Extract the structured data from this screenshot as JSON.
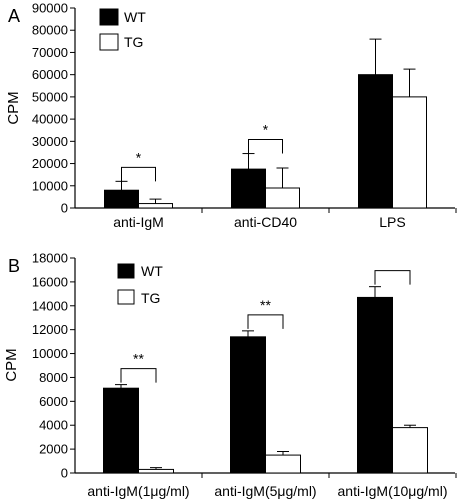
{
  "chart_data": [
    {
      "type": "bar",
      "panel_label": "A",
      "ylabel": "CPM",
      "ylim": [
        0,
        90000
      ],
      "yticks": [
        0,
        10000,
        20000,
        30000,
        40000,
        50000,
        60000,
        70000,
        80000,
        90000
      ],
      "categories": [
        "anti-IgM",
        "anti-CD40",
        "LPS"
      ],
      "series": [
        {
          "name": "WT",
          "color": "#000000",
          "values": [
            8000,
            17500,
            60000
          ],
          "errors": [
            4000,
            7000,
            16000
          ]
        },
        {
          "name": "TG",
          "color": "#ffffff",
          "values": [
            2000,
            9000,
            50000
          ],
          "errors": [
            2000,
            9000,
            12500
          ]
        }
      ],
      "significance": [
        "*",
        "*",
        ""
      ],
      "legend": {
        "placement": "top-left"
      }
    },
    {
      "type": "bar",
      "panel_label": "B",
      "ylabel": "CPM",
      "ylim": [
        0,
        18000
      ],
      "yticks": [
        0,
        2000,
        4000,
        6000,
        8000,
        10000,
        12000,
        14000,
        16000,
        18000
      ],
      "categories": [
        "anti-IgM(1μg/ml)",
        "anti-IgM(5μg/ml)",
        "anti-IgM(10μg/ml)"
      ],
      "series": [
        {
          "name": "WT",
          "color": "#000000",
          "values": [
            7100,
            11400,
            14700
          ],
          "errors": [
            300,
            500,
            900
          ]
        },
        {
          "name": "TG",
          "color": "#ffffff",
          "values": [
            300,
            1500,
            3800
          ],
          "errors": [
            150,
            300,
            200
          ]
        }
      ],
      "significance": [
        "**",
        "**",
        ""
      ],
      "legend": {
        "placement": "top-left"
      }
    }
  ]
}
